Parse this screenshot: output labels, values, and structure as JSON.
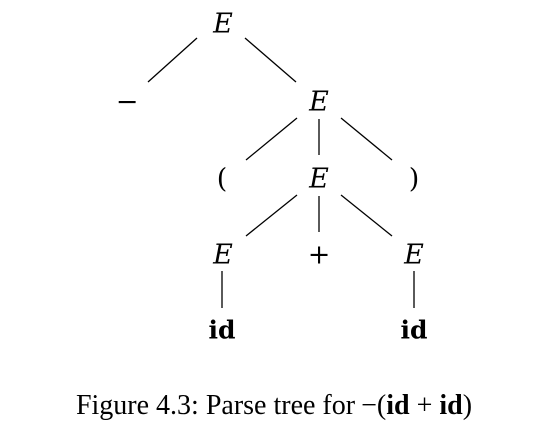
{
  "diagram": {
    "nodes": [
      {
        "id": "n1",
        "label": "E",
        "kind": "nonterminal"
      },
      {
        "id": "n2",
        "label": "−",
        "kind": "terminal"
      },
      {
        "id": "n3",
        "label": "E",
        "kind": "nonterminal"
      },
      {
        "id": "n4",
        "label": "(",
        "kind": "terminal"
      },
      {
        "id": "n5",
        "label": "E",
        "kind": "nonterminal"
      },
      {
        "id": "n6",
        "label": ")",
        "kind": "terminal"
      },
      {
        "id": "n7",
        "label": "E",
        "kind": "nonterminal"
      },
      {
        "id": "n8",
        "label": "+",
        "kind": "terminal"
      },
      {
        "id": "n9",
        "label": "E",
        "kind": "nonterminal"
      },
      {
        "id": "n10",
        "label": "id",
        "kind": "terminal-bold"
      },
      {
        "id": "n11",
        "label": "id",
        "kind": "terminal-bold"
      }
    ],
    "edges": [
      [
        "n1",
        "n2"
      ],
      [
        "n1",
        "n3"
      ],
      [
        "n3",
        "n4"
      ],
      [
        "n3",
        "n5"
      ],
      [
        "n3",
        "n6"
      ],
      [
        "n5",
        "n7"
      ],
      [
        "n5",
        "n8"
      ],
      [
        "n5",
        "n9"
      ],
      [
        "n7",
        "n10"
      ],
      [
        "n9",
        "n11"
      ]
    ]
  },
  "caption": {
    "prefix": "Figure 4.3: Parse tree for",
    "minus": "−",
    "open": "(",
    "id1": "id",
    "plus": " + ",
    "id2": "id",
    "close": ")"
  }
}
